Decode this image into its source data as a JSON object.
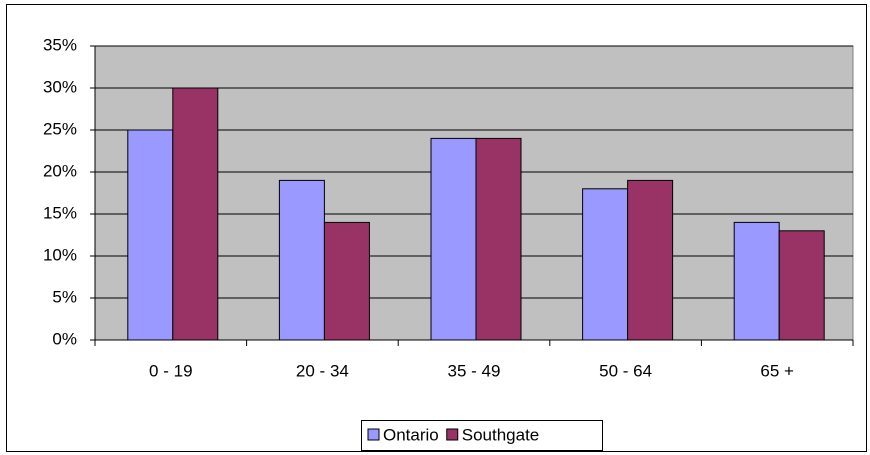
{
  "chart_data": {
    "type": "bar",
    "categories": [
      "0 - 19",
      "20 - 34",
      "35 - 49",
      "50 - 64",
      "65 +"
    ],
    "series": [
      {
        "name": "Ontario",
        "color": "#9999ff",
        "values": [
          25,
          19,
          24,
          18,
          14
        ]
      },
      {
        "name": "Southgate",
        "color": "#993366",
        "values": [
          30,
          14,
          24,
          19,
          13
        ]
      }
    ],
    "ylim": [
      0,
      35
    ],
    "yticks": [
      {
        "value": 0,
        "label": "0%"
      },
      {
        "value": 5,
        "label": "5%"
      },
      {
        "value": 10,
        "label": "10%"
      },
      {
        "value": 15,
        "label": "15%"
      },
      {
        "value": 20,
        "label": "20%"
      },
      {
        "value": 25,
        "label": "25%"
      },
      {
        "value": 30,
        "label": "30%"
      },
      {
        "value": 35,
        "label": "35%"
      }
    ],
    "grid": true,
    "legend": "bottom"
  }
}
